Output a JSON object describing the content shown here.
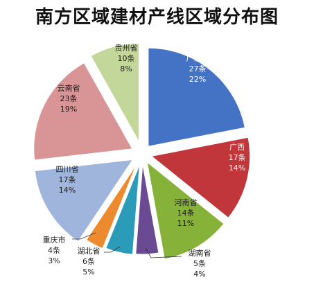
{
  "chart_data": {
    "type": "pie",
    "title": "南方区域建材产线区域分布图",
    "exploded": true,
    "slices": [
      {
        "name": "广东省",
        "count": "27条",
        "percent": "22%",
        "value": 27,
        "color": "#4472C4",
        "label_color": "#ffffff"
      },
      {
        "name": "广西",
        "count": "17条",
        "percent": "14%",
        "value": 17,
        "color": "#C0363A",
        "label_color": "#ffffff"
      },
      {
        "name": "河南省",
        "count": "14条",
        "percent": "11%",
        "value": 14,
        "color": "#86B23A",
        "label_color": "#1a1a1a"
      },
      {
        "name": "湖南省",
        "count": "5条",
        "percent": "4%",
        "value": 5,
        "color": "#6A4A93",
        "label_color": "#1a1a1a"
      },
      {
        "name": "湖北省",
        "count": "6条",
        "percent": "5%",
        "value": 6,
        "color": "#2A9BB8",
        "label_color": "#1a1a1a"
      },
      {
        "name": "重庆市",
        "count": "4条",
        "percent": "3%",
        "value": 4,
        "color": "#EE8A2E",
        "label_color": "#1a1a1a"
      },
      {
        "name": "四川省",
        "count": "17条",
        "percent": "14%",
        "value": 17,
        "color": "#9FB5DC",
        "label_color": "#1a1a1a"
      },
      {
        "name": "云南省",
        "count": "23条",
        "percent": "19%",
        "value": 23,
        "color": "#D99496",
        "label_color": "#1a1a1a"
      },
      {
        "name": "贵州省",
        "count": "10条",
        "percent": "8%",
        "value": 10,
        "color": "#C4D79B",
        "label_color": "#1a1a1a"
      }
    ]
  }
}
